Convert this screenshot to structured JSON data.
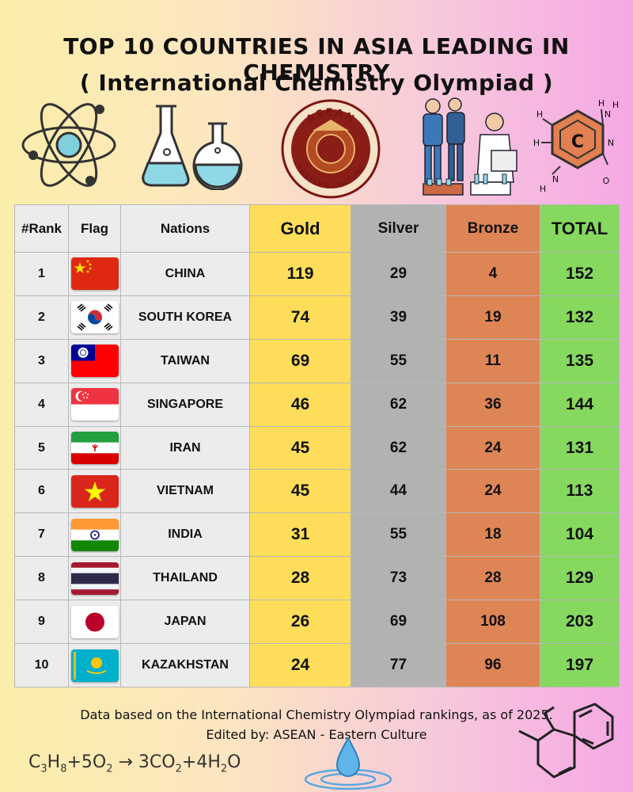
{
  "header": {
    "title": "TOP 10 COUNTRIES IN ASIA LEADING IN CHEMISTRY",
    "subtitle": "( International Chemistry Olympiad )"
  },
  "illustrations": {
    "logo_top_text": "ASEAN",
    "logo_bottom_text": "EASTERN CULTURE",
    "molecule_center_label": "C",
    "molecule_atoms": [
      "H",
      "H",
      "N",
      "H",
      "H",
      "N",
      "H",
      "N",
      "O"
    ]
  },
  "chart_data": {
    "type": "table",
    "columns": [
      "#Rank",
      "Flag",
      "Nations",
      "Gold",
      "Silver",
      "Bronze",
      "TOTAL"
    ],
    "rows": [
      {
        "rank": "1",
        "flag": "china-flag",
        "nation": "CHINA",
        "gold": 119,
        "silver": 29,
        "bronze": 4,
        "total": 152
      },
      {
        "rank": "2",
        "flag": "south-korea-flag",
        "nation": "SOUTH KOREA",
        "gold": 74,
        "silver": 39,
        "bronze": 19,
        "total": 132
      },
      {
        "rank": "3",
        "flag": "taiwan-flag",
        "nation": "TAIWAN",
        "gold": 69,
        "silver": 55,
        "bronze": 11,
        "total": 135
      },
      {
        "rank": "4",
        "flag": "singapore-flag",
        "nation": "SINGAPORE",
        "gold": 46,
        "silver": 62,
        "bronze": 36,
        "total": 144
      },
      {
        "rank": "5",
        "flag": "iran-flag",
        "nation": "IRAN",
        "gold": 45,
        "silver": 62,
        "bronze": 24,
        "total": 131
      },
      {
        "rank": "6",
        "flag": "vietnam-flag",
        "nation": "VIETNAM",
        "gold": 45,
        "silver": 44,
        "bronze": 24,
        "total": 113
      },
      {
        "rank": "7",
        "flag": "india-flag",
        "nation": "INDIA",
        "gold": 31,
        "silver": 55,
        "bronze": 18,
        "total": 104
      },
      {
        "rank": "8",
        "flag": "thailand-flag",
        "nation": "THAILAND",
        "gold": 28,
        "silver": 73,
        "bronze": 28,
        "total": 129
      },
      {
        "rank": "9",
        "flag": "japan-flag",
        "nation": "JAPAN",
        "gold": 26,
        "silver": 69,
        "bronze": 108,
        "total": 203
      },
      {
        "rank": "10",
        "flag": "kazakhstan-flag",
        "nation": "KAZAKHSTAN",
        "gold": 24,
        "silver": 77,
        "bronze": 96,
        "total": 197
      }
    ],
    "column_colors": {
      "gold": "#fedd5a",
      "silver": "#b2b2b2",
      "bronze": "#de8555",
      "total": "#86d95e"
    }
  },
  "footer": {
    "note": "Data based on the International Chemistry Olympiad rankings, as of 2025.",
    "credit": "Edited by: ASEAN - Eastern Culture",
    "equation_parts": [
      "C",
      "3",
      "H",
      "8",
      "+5O",
      "2",
      " → 3CO",
      "2",
      "+4H",
      "2",
      "O"
    ]
  }
}
